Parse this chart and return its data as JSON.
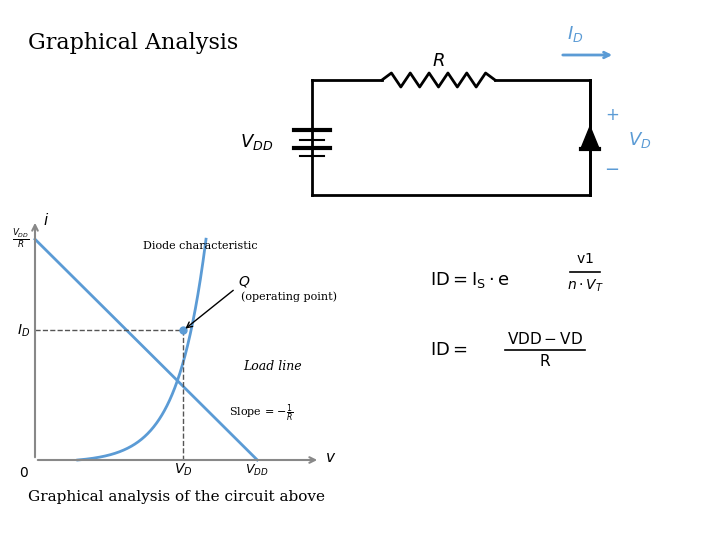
{
  "title": "Graphical Analysis",
  "subtitle": "Graphical analysis of the circuit above",
  "bg_color": "#ffffff",
  "circuit_color": "#000000",
  "blue_color": "#5b9bd5",
  "graph_line_color": "#5b9bd5",
  "axis_color": "#888888",
  "label_color": "#555555",
  "vdd_r_label": "V_{DD}/R",
  "id_label": "I_D",
  "vd_label": "V_D",
  "vdd_label": "V_{DD}",
  "i_label": "i",
  "q_label": "Q",
  "slope_label": "Slope = -1/R",
  "load_line_label": "Load line",
  "diode_char_label": "Diode characteristic",
  "op_label": "(operating point)",
  "eq1_top": "v1",
  "eq1_bot": "n\\cdot V_T",
  "eq1_prefix": "ID = I_S\\cdot e",
  "eq2_top": "VDD - VD",
  "eq2_bot": "R",
  "eq2_prefix": "ID = "
}
